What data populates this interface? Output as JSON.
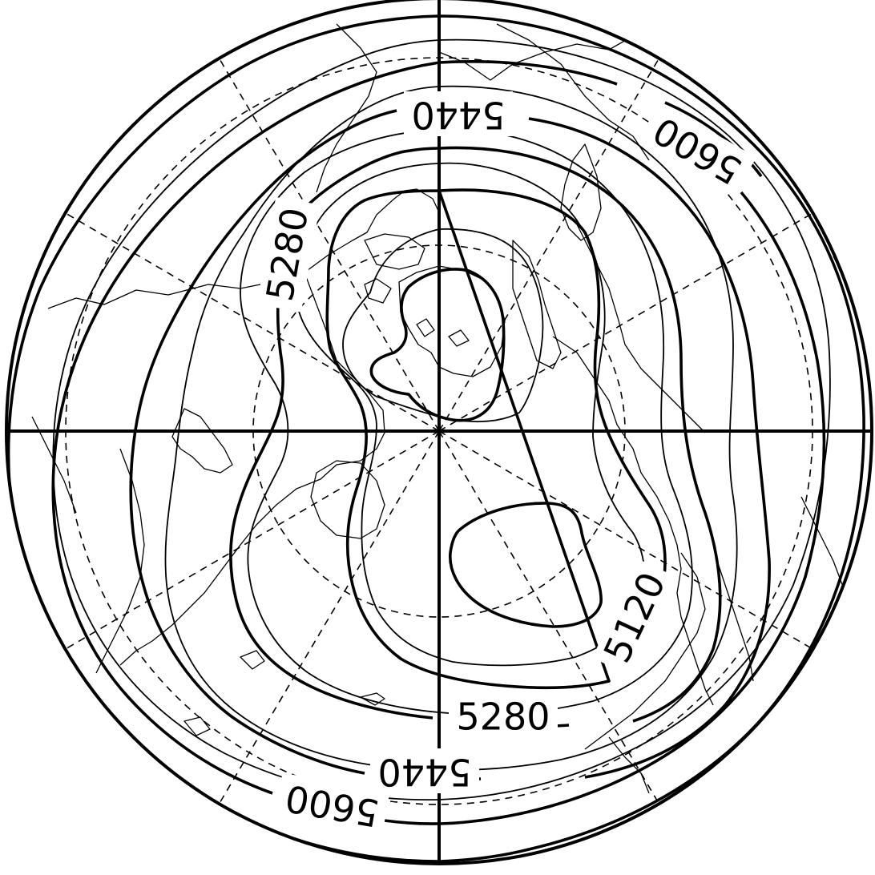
{
  "map": {
    "projection": "polar stereographic (Northern Hemisphere)",
    "style": {
      "ink_color": "#000000",
      "background_color": "#ffffff"
    },
    "contour_labels": [
      {
        "id": "label-5440-top",
        "text": "5440"
      },
      {
        "id": "label-5600-top-right",
        "text": "5600"
      },
      {
        "id": "label-5280-left",
        "text": "5280"
      },
      {
        "id": "label-5120-right",
        "text": "5120"
      },
      {
        "id": "label-5280-bottom",
        "text": "5280"
      },
      {
        "id": "label-5440-bottom",
        "text": "5440"
      },
      {
        "id": "label-5600-bottom",
        "text": "5600"
      }
    ]
  }
}
